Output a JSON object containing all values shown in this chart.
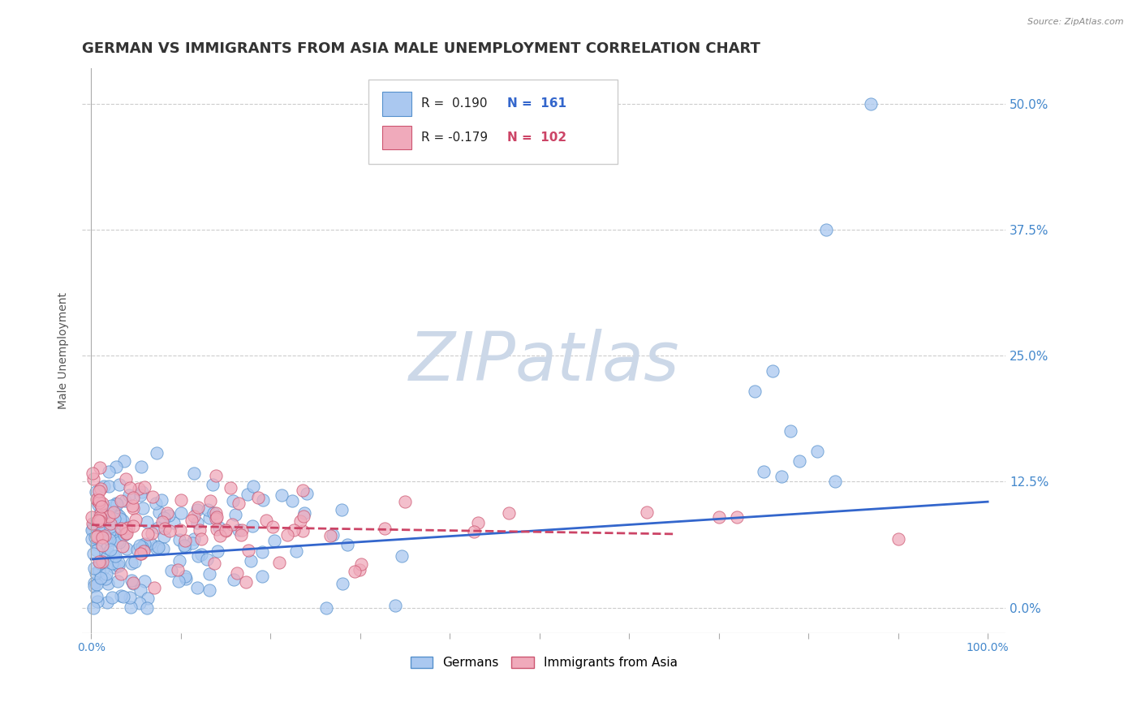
{
  "title": "GERMAN VS IMMIGRANTS FROM ASIA MALE UNEMPLOYMENT CORRELATION CHART",
  "source_text": "Source: ZipAtlas.com",
  "ylabel": "Male Unemployment",
  "watermark": "ZIPatlas",
  "xlim": [
    -0.01,
    1.02
  ],
  "ylim": [
    -0.025,
    0.535
  ],
  "xtick_positions": [
    0.0,
    0.1,
    0.2,
    0.3,
    0.4,
    0.5,
    0.6,
    0.7,
    0.8,
    0.9,
    1.0
  ],
  "xtick_labels_show": {
    "0.0": "0.0%",
    "1.0": "100.0%"
  },
  "yticks_right": [
    0.0,
    0.125,
    0.25,
    0.375,
    0.5
  ],
  "ytick_labels_right": [
    "0.0%",
    "12.5%",
    "25.0%",
    "37.5%",
    "50.0%"
  ],
  "series1_name": "Germans",
  "series1_color": "#aac8f0",
  "series1_edge_color": "#5590cc",
  "series1_R": 0.19,
  "series1_N": 161,
  "series2_name": "Immigrants from Asia",
  "series2_color": "#f0aabb",
  "series2_edge_color": "#cc5570",
  "series2_R": -0.179,
  "series2_N": 102,
  "trendline1_color": "#3366cc",
  "trendline2_color": "#cc4466",
  "grid_color": "#cccccc",
  "background_color": "#ffffff",
  "title_color": "#333333",
  "title_fontsize": 13,
  "axis_label_fontsize": 10,
  "tick_fontsize": 10,
  "legend_fontsize": 11,
  "watermark_color": "#ccd8e8",
  "watermark_fontsize": 60,
  "right_label_color": "#4488cc",
  "seed": 42,
  "trend1_x0": 0.0,
  "trend1_x1": 1.0,
  "trend1_y0": 0.048,
  "trend1_y1": 0.105,
  "trend2_x0": 0.0,
  "trend2_x1": 0.65,
  "trend2_y0": 0.082,
  "trend2_y1": 0.073
}
